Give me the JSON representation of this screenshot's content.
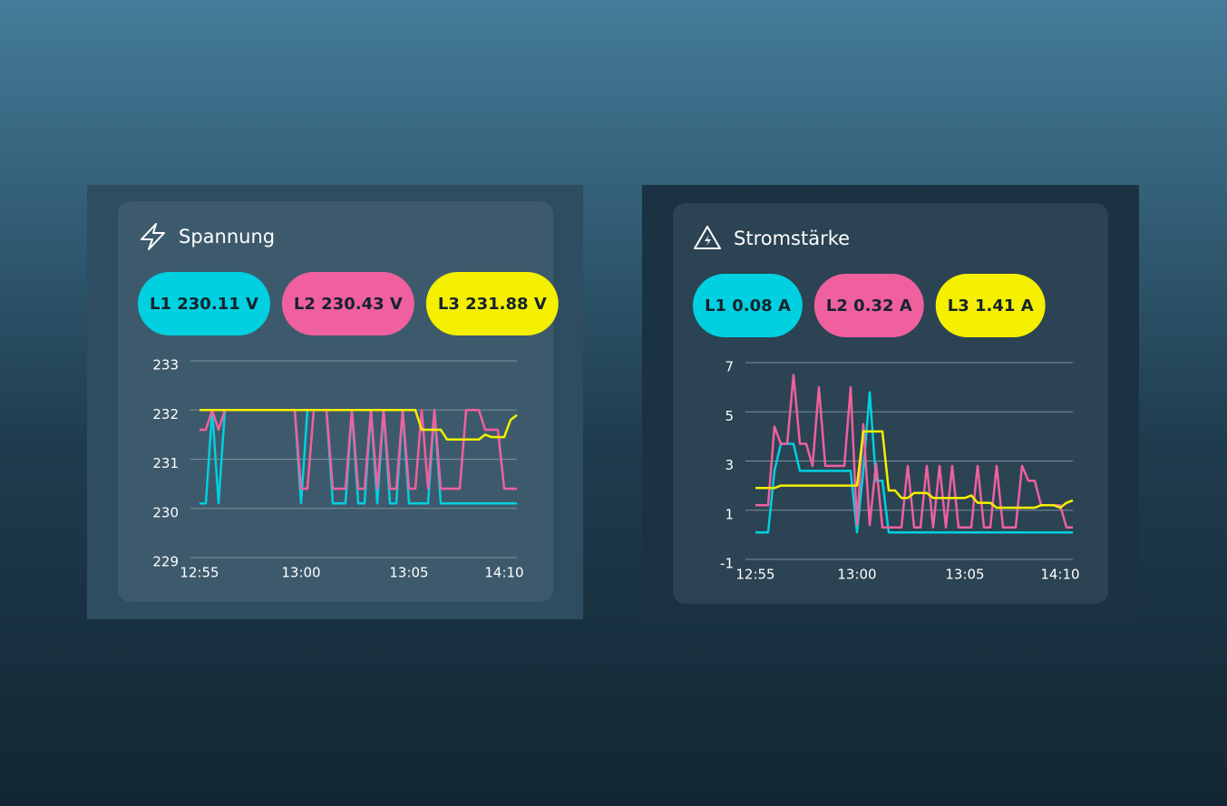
{
  "chart_data": [
    {
      "type": "line",
      "title": "Spannung",
      "badges": [
        "L1 230.11 V",
        "L2 230.43 V",
        "L3 231.88 V"
      ],
      "categories": [
        "12:55",
        null,
        null,
        null,
        null,
        null,
        null,
        null,
        null,
        null,
        null,
        null,
        null,
        null,
        null,
        null,
        "13:00",
        null,
        null,
        null,
        null,
        null,
        null,
        null,
        null,
        null,
        null,
        null,
        null,
        null,
        null,
        null,
        null,
        "13:05",
        null,
        null,
        null,
        null,
        null,
        null,
        null,
        null,
        null,
        null,
        null,
        null,
        null,
        null,
        "14:10",
        null,
        null
      ],
      "series": [
        {
          "name": "L1",
          "color": "#00d0e0",
          "values": [
            230.1,
            230.1,
            232,
            230.1,
            232,
            232,
            232,
            232,
            232,
            232,
            232,
            232,
            232,
            232,
            232,
            232,
            230.1,
            232,
            232,
            232,
            232,
            230.1,
            230.1,
            230.1,
            232,
            230.1,
            230.1,
            232,
            230.1,
            232,
            230.1,
            230.1,
            232,
            230.1,
            230.1,
            230.1,
            230.1,
            232,
            230.1,
            230.1,
            230.1,
            230.1,
            230.1,
            230.1,
            230.1,
            230.1,
            230.1,
            230.1,
            230.1,
            230.1,
            230.1
          ]
        },
        {
          "name": "L2",
          "color": "#f0609e",
          "values": [
            231.6,
            231.6,
            232,
            231.6,
            232,
            232,
            232,
            232,
            232,
            232,
            232,
            232,
            232,
            232,
            232,
            232,
            230.4,
            230.4,
            232,
            232,
            232,
            230.4,
            230.4,
            230.4,
            232,
            230.4,
            230.4,
            232,
            230.4,
            232,
            230.4,
            230.4,
            232,
            230.4,
            230.4,
            232,
            230.4,
            232,
            230.4,
            230.4,
            230.4,
            230.4,
            232,
            232,
            232,
            231.6,
            231.6,
            231.6,
            230.4,
            230.4,
            230.4
          ]
        },
        {
          "name": "L3",
          "color": "#f5f000",
          "values": [
            232,
            232,
            232,
            232,
            232,
            232,
            232,
            232,
            232,
            232,
            232,
            232,
            232,
            232,
            232,
            232,
            232,
            232,
            232,
            232,
            232,
            232,
            232,
            232,
            232,
            232,
            232,
            232,
            232,
            232,
            232,
            232,
            232,
            232,
            232,
            231.6,
            231.6,
            231.6,
            231.6,
            231.4,
            231.4,
            231.4,
            231.4,
            231.4,
            231.4,
            231.5,
            231.45,
            231.45,
            231.45,
            231.8,
            231.9
          ]
        }
      ],
      "ylim": [
        229,
        233
      ],
      "yticks": [
        229,
        230,
        231,
        232,
        233
      ],
      "grid": true
    },
    {
      "type": "line",
      "title": "Stromstärke",
      "badges": [
        "L1 0.08 A",
        "L2 0.32 A",
        "L3 1.41 A"
      ],
      "categories": [
        "12:55",
        null,
        null,
        null,
        null,
        null,
        null,
        null,
        null,
        null,
        null,
        null,
        null,
        null,
        null,
        null,
        "13:00",
        null,
        null,
        null,
        null,
        null,
        null,
        null,
        null,
        null,
        null,
        null,
        null,
        null,
        null,
        null,
        null,
        "13:05",
        null,
        null,
        null,
        null,
        null,
        null,
        null,
        null,
        null,
        null,
        null,
        null,
        null,
        null,
        "14:10",
        null,
        null
      ],
      "series": [
        {
          "name": "L1",
          "color": "#00d0e0",
          "values": [
            0.1,
            0.1,
            0.1,
            2.6,
            3.7,
            3.7,
            3.7,
            2.6,
            2.6,
            2.6,
            2.6,
            2.6,
            2.6,
            2.6,
            2.6,
            2.6,
            0.1,
            2.6,
            5.8,
            2.2,
            2.2,
            0.1,
            0.1,
            0.1,
            0.1,
            0.1,
            0.1,
            0.1,
            0.1,
            0.1,
            0.1,
            0.1,
            0.1,
            0.1,
            0.1,
            0.1,
            0.1,
            0.1,
            0.1,
            0.1,
            0.1,
            0.1,
            0.1,
            0.1,
            0.1,
            0.1,
            0.1,
            0.1,
            0.1,
            0.1,
            0.1
          ]
        },
        {
          "name": "L2",
          "color": "#f0609e",
          "values": [
            1.2,
            1.2,
            1.2,
            4.4,
            3.7,
            3.7,
            6.5,
            3.7,
            3.7,
            2.8,
            6,
            2.8,
            2.8,
            2.8,
            2.8,
            6,
            0.4,
            4.5,
            0.4,
            2.9,
            0.3,
            0.3,
            0.3,
            0.3,
            2.8,
            0.3,
            0.3,
            2.8,
            0.3,
            2.8,
            0.3,
            2.8,
            0.3,
            0.3,
            0.3,
            2.8,
            0.3,
            0.3,
            2.8,
            0.3,
            0.3,
            0.3,
            2.8,
            2.2,
            2.2,
            1.2,
            1.2,
            1.2,
            1.2,
            0.3,
            0.3
          ]
        },
        {
          "name": "L3",
          "color": "#f5f000",
          "values": [
            1.9,
            1.9,
            1.9,
            1.9,
            2,
            2,
            2,
            2,
            2,
            2,
            2,
            2,
            2,
            2,
            2,
            2,
            2,
            4.2,
            4.2,
            4.2,
            4.2,
            1.8,
            1.8,
            1.5,
            1.5,
            1.7,
            1.7,
            1.7,
            1.5,
            1.5,
            1.5,
            1.5,
            1.5,
            1.5,
            1.6,
            1.3,
            1.3,
            1.3,
            1.1,
            1.1,
            1.1,
            1.1,
            1.1,
            1.1,
            1.1,
            1.2,
            1.2,
            1.2,
            1.1,
            1.3,
            1.4
          ]
        }
      ],
      "ylim": [
        -1,
        7
      ],
      "yticks": [
        -1,
        1,
        3,
        5,
        7
      ],
      "grid": true
    }
  ]
}
